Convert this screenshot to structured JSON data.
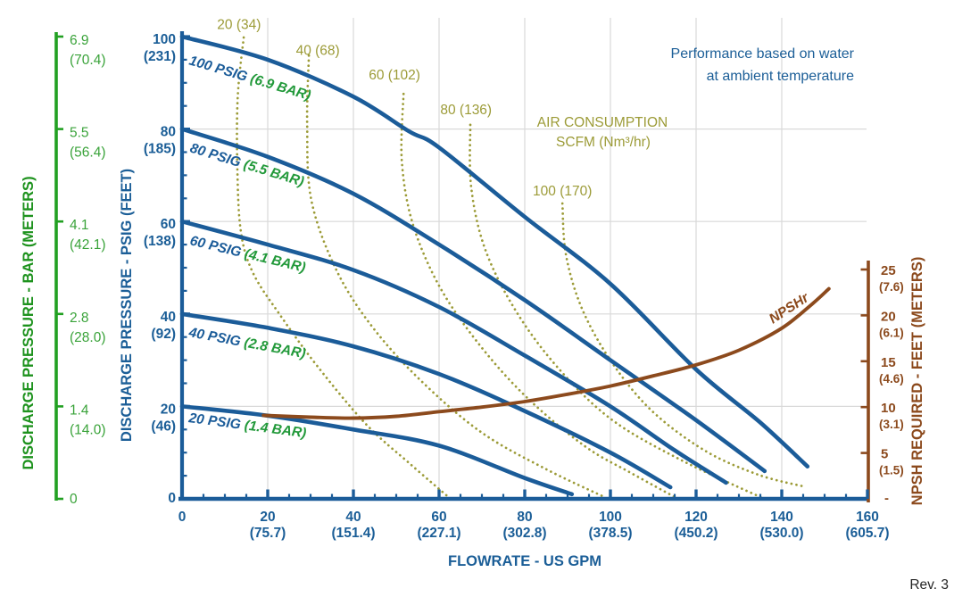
{
  "note": {
    "line1": "Performance based on water",
    "line2": "at ambient temperature"
  },
  "revision": "Rev. 3",
  "chart_data": {
    "type": "line",
    "title": "",
    "grid": true,
    "x_axis": {
      "title": "FLOWRATE - US GPM",
      "range": [
        0,
        160
      ],
      "major_step": 20,
      "minor_step": 5,
      "ticks": [
        {
          "gpm": "0",
          "lpm": ""
        },
        {
          "gpm": "20",
          "lpm": "(75.7)"
        },
        {
          "gpm": "40",
          "lpm": "(151.4)"
        },
        {
          "gpm": "60",
          "lpm": "(227.1)"
        },
        {
          "gpm": "80",
          "lpm": "(302.8)"
        },
        {
          "gpm": "100",
          "lpm": "(378.5)"
        },
        {
          "gpm": "120",
          "lpm": "(450.2)"
        },
        {
          "gpm": "140",
          "lpm": "(530.0)"
        },
        {
          "gpm": "160",
          "lpm": "(605.7)"
        }
      ]
    },
    "y_axis_psig": {
      "title": "DISCHARGE PRESSURE  - PSIG (FEET)",
      "range": [
        0,
        100
      ],
      "major_step": 20,
      "minor_step": 5,
      "ticks": [
        {
          "psig": "100",
          "feet": "(231)"
        },
        {
          "psig": "80",
          "feet": "(185)"
        },
        {
          "psig": "60",
          "feet": "(138)"
        },
        {
          "psig": "40",
          "feet": "(92)"
        },
        {
          "psig": "20",
          "feet": "(46)"
        },
        {
          "psig": "0",
          "feet": ""
        }
      ]
    },
    "y_axis_bar": {
      "title": "DISCHARGE PRESSURE - BAR (METERS)",
      "ticks": [
        {
          "bar": "6.9",
          "meters": "(70.4)"
        },
        {
          "bar": "5.5",
          "meters": "(56.4)"
        },
        {
          "bar": "4.1",
          "meters": "(42.1)"
        },
        {
          "bar": "2.8",
          "meters": "(28.0)"
        },
        {
          "bar": "1.4",
          "meters": "(14.0)"
        },
        {
          "bar": "0",
          "meters": ""
        }
      ]
    },
    "y_axis_npsh": {
      "title": "NPSH REQUIRED - FEET (METERS)",
      "range": [
        0,
        25
      ],
      "ticks": [
        {
          "feet": "25",
          "meters": "(7.6)"
        },
        {
          "feet": "20",
          "meters": "(6.1)"
        },
        {
          "feet": "15",
          "meters": "(4.6)"
        },
        {
          "feet": "10",
          "meters": "(3.1)"
        },
        {
          "feet": "5",
          "meters": "(1.5)"
        },
        {
          "feet": "-",
          "meters": ""
        }
      ]
    },
    "performance_curves": [
      {
        "label_psig": "100 PSIG",
        "label_bar": "(6.9 BAR)",
        "points": [
          [
            0,
            100
          ],
          [
            20,
            95
          ],
          [
            40,
            87
          ],
          [
            53,
            79.5
          ],
          [
            60,
            76
          ],
          [
            80,
            61
          ],
          [
            100,
            46.5
          ],
          [
            120,
            28
          ],
          [
            135,
            16.5
          ],
          [
            146,
            7
          ]
        ]
      },
      {
        "label_psig": "80 PSIG",
        "label_bar": "(5.5 BAR)",
        "points": [
          [
            0,
            80
          ],
          [
            20,
            74
          ],
          [
            40,
            66
          ],
          [
            60,
            55
          ],
          [
            80,
            43
          ],
          [
            100,
            30
          ],
          [
            120,
            17
          ],
          [
            136,
            6
          ]
        ]
      },
      {
        "label_psig": "60 PSIG",
        "label_bar": "(4.1 BAR)",
        "points": [
          [
            0,
            60
          ],
          [
            20,
            55
          ],
          [
            40,
            49.5
          ],
          [
            60,
            41.5
          ],
          [
            80,
            31
          ],
          [
            100,
            20
          ],
          [
            115,
            10.5
          ],
          [
            127,
            3.5
          ]
        ]
      },
      {
        "label_psig": "40 PSIG",
        "label_bar": "(2.8 BAR)",
        "points": [
          [
            0,
            40
          ],
          [
            20,
            37
          ],
          [
            40,
            33
          ],
          [
            60,
            27
          ],
          [
            80,
            19
          ],
          [
            100,
            10
          ],
          [
            114,
            2.5
          ]
        ]
      },
      {
        "label_psig": "20 PSIG",
        "label_bar": "(1.4 BAR)",
        "points": [
          [
            0,
            20
          ],
          [
            20,
            18
          ],
          [
            40,
            15
          ],
          [
            60,
            11.5
          ],
          [
            80,
            4.5
          ],
          [
            91,
            1
          ]
        ]
      }
    ],
    "air_consumption": {
      "legend_line1": "AIR CONSUMPTION",
      "legend_line2": "SCFM (Nm³/hr)",
      "curves": [
        {
          "label": "20 (34)",
          "scfm": 20,
          "nm3hr": 34,
          "label_pos": [
            13.3,
            101.6
          ],
          "points": [
            [
              14.4,
              99.8
            ],
            [
              13.0,
              87
            ],
            [
              12.9,
              72
            ],
            [
              13.7,
              58
            ],
            [
              16.5,
              49
            ],
            [
              22.7,
              40
            ],
            [
              31.5,
              28.8
            ],
            [
              42.9,
              16.2
            ],
            [
              53.3,
              7.5
            ],
            [
              62.3,
              0.3
            ]
          ]
        },
        {
          "label": "40 (68)",
          "scfm": 40,
          "nm3hr": 68,
          "label_pos": [
            31.7,
            96.0
          ],
          "points": [
            [
              29.6,
              95.9
            ],
            [
              29.2,
              81
            ],
            [
              30.2,
              64.5
            ],
            [
              36.3,
              49
            ],
            [
              45,
              36.5
            ],
            [
              56.5,
              24.9
            ],
            [
              70,
              14.3
            ],
            [
              84.6,
              6.6
            ],
            [
              98.8,
              0.3
            ]
          ]
        },
        {
          "label": "60 (102)",
          "scfm": 60,
          "nm3hr": 102,
          "label_pos": [
            49.6,
            90.7
          ],
          "points": [
            [
              51.7,
              87.6
            ],
            [
              51.3,
              73.2
            ],
            [
              53.8,
              59.7
            ],
            [
              60,
              46.1
            ],
            [
              69.2,
              33.6
            ],
            [
              80.4,
              22
            ],
            [
              94,
              11.4
            ],
            [
              105,
              5.5
            ],
            [
              115.2,
              0.3
            ]
          ]
        },
        {
          "label": "80 (136)",
          "scfm": 80,
          "nm3hr": 136,
          "label_pos": [
            66.3,
            83.2
          ],
          "points": [
            [
              67.3,
              80.9
            ],
            [
              67.5,
              67.4
            ],
            [
              70.8,
              53.9
            ],
            [
              77.9,
              40.7
            ],
            [
              87.7,
              28.4
            ],
            [
              100.2,
              17.2
            ],
            [
              116.3,
              8.5
            ],
            [
              135.2,
              0.3
            ]
          ]
        },
        {
          "label": "100 (170)",
          "scfm": 100,
          "nm3hr": 170,
          "label_pos": [
            88.8,
            65.6
          ],
          "points": [
            [
              88.8,
              63.9
            ],
            [
              89.6,
              52.9
            ],
            [
              93.3,
              41.3
            ],
            [
              100.2,
              29.7
            ],
            [
              109.6,
              19.1
            ],
            [
              122.1,
              10.4
            ],
            [
              134.6,
              5.2
            ],
            [
              145,
              2.7
            ]
          ]
        }
      ]
    },
    "npshr": {
      "label": "NPSHr",
      "points": [
        [
          19,
          9.1
        ],
        [
          30,
          8.9
        ],
        [
          40,
          8.8
        ],
        [
          50,
          9.0
        ],
        [
          60,
          9.5
        ],
        [
          70,
          10.0
        ],
        [
          80,
          10.6
        ],
        [
          90,
          11.4
        ],
        [
          100,
          12.3
        ],
        [
          110,
          13.4
        ],
        [
          120,
          14.6
        ],
        [
          130,
          16.2
        ],
        [
          140,
          18.6
        ],
        [
          147,
          21.2
        ],
        [
          151,
          22.9
        ]
      ]
    },
    "colors": {
      "performance_blue": "#1b5c99",
      "air_olive": "#9c9b37",
      "npshr_brown": "#8c4a1d",
      "bar_axis_green": "#22a022",
      "bar_tick_green": "#3aa33a",
      "bar_title_green": "#1d921d",
      "curve_label_green": "#22993a",
      "text_blue": "#1b5e97",
      "grid_gray": "#d9d9d9",
      "rev_text": "#262626"
    }
  }
}
